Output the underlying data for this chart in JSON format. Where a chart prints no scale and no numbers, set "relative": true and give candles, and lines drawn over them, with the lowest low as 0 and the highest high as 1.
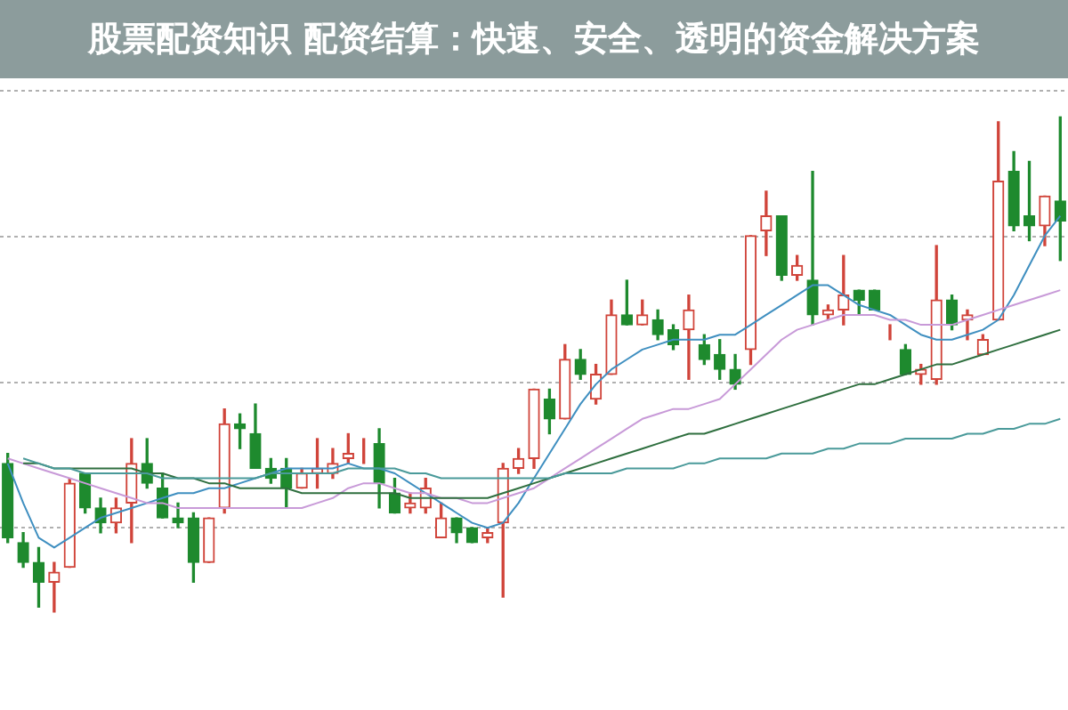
{
  "chart_data": {
    "type": "candlestick",
    "title": "股票配资知识 配资结算：快速、安全、透明的资金解决方案",
    "relative": true,
    "grid": "y",
    "marker": "none",
    "categories": [
      null,
      null,
      null,
      null,
      null,
      null,
      null,
      null,
      null,
      null,
      null,
      null,
      null,
      null,
      null,
      null,
      null,
      null,
      null,
      null,
      null,
      null,
      null,
      null,
      null,
      null,
      null,
      null,
      null,
      null,
      null,
      null,
      null,
      null,
      null,
      null,
      null,
      null,
      null,
      null,
      null,
      null,
      null,
      null,
      null,
      null,
      null,
      null,
      null,
      null,
      null,
      null,
      null,
      null,
      null,
      null,
      null,
      null,
      null,
      null,
      null,
      null,
      null,
      null,
      null,
      null,
      null,
      null,
      null
    ],
    "ohlc": [
      [
        0.3,
        0.32,
        0.14,
        0.15
      ],
      [
        0.14,
        0.16,
        0.09,
        0.1
      ],
      [
        0.1,
        0.13,
        0.01,
        0.06
      ],
      [
        0.06,
        0.1,
        0,
        0.08
      ],
      [
        0.09,
        0.27,
        0.09,
        0.26
      ],
      [
        0.28,
        0.28,
        0.2,
        0.21
      ],
      [
        0.21,
        0.23,
        0.16,
        0.18
      ],
      [
        0.18,
        0.23,
        0.16,
        0.21
      ],
      [
        0.22,
        0.35,
        0.14,
        0.3
      ],
      [
        0.3,
        0.35,
        0.25,
        0.26
      ],
      [
        0.25,
        0.28,
        0.19,
        0.19
      ],
      [
        0.19,
        0.22,
        0.17,
        0.18
      ],
      [
        0.19,
        0.2,
        0.06,
        0.1
      ],
      [
        0.1,
        0.19,
        0.1,
        0.19
      ],
      [
        0.21,
        0.41,
        0.2,
        0.38
      ],
      [
        0.38,
        0.4,
        0.33,
        0.37
      ],
      [
        0.36,
        0.42,
        0.29,
        0.29
      ],
      [
        0.29,
        0.31,
        0.26,
        0.27
      ],
      [
        0.29,
        0.31,
        0.21,
        0.25
      ],
      [
        0.25,
        0.29,
        0.25,
        0.28
      ],
      [
        0.28,
        0.35,
        0.25,
        0.29
      ],
      [
        0.28,
        0.33,
        0.27,
        0.3
      ],
      [
        0.31,
        0.36,
        0.3,
        0.32
      ],
      [
        0.32,
        0.35,
        0.3,
        0.32
      ],
      [
        0.34,
        0.37,
        0.21,
        0.26
      ],
      [
        0.24,
        0.27,
        0.2,
        0.2
      ],
      [
        0.21,
        0.24,
        0.2,
        0.22
      ],
      [
        0.21,
        0.27,
        0.2,
        0.25
      ],
      [
        0.15,
        0.22,
        0.15,
        0.19
      ],
      [
        0.19,
        0.19,
        0.14,
        0.16
      ],
      [
        0.17,
        0.17,
        0.14,
        0.14
      ],
      [
        0.15,
        0.17,
        0.14,
        0.16
      ],
      [
        0.18,
        0.3,
        0.03,
        0.29
      ],
      [
        0.29,
        0.33,
        0.28,
        0.31
      ],
      [
        0.31,
        0.45,
        0.29,
        0.45
      ],
      [
        0.43,
        0.45,
        0.36,
        0.39
      ],
      [
        0.39,
        0.54,
        0.39,
        0.51
      ],
      [
        0.51,
        0.53,
        0.47,
        0.48
      ],
      [
        0.43,
        0.5,
        0.42,
        0.48
      ],
      [
        0.48,
        0.63,
        0.48,
        0.6
      ],
      [
        0.6,
        0.67,
        0.58,
        0.58
      ],
      [
        0.58,
        0.63,
        0.58,
        0.6
      ],
      [
        0.59,
        0.61,
        0.55,
        0.56
      ],
      [
        0.57,
        0.58,
        0.53,
        0.54
      ],
      [
        0.57,
        0.64,
        0.47,
        0.61
      ],
      [
        0.54,
        0.56,
        0.5,
        0.51
      ],
      [
        0.52,
        0.55,
        0.47,
        0.49
      ],
      [
        0.49,
        0.52,
        0.45,
        0.46
      ],
      [
        0.53,
        0.76,
        0.5,
        0.76
      ],
      [
        0.77,
        0.85,
        0.72,
        0.8
      ],
      [
        0.8,
        0.8,
        0.67,
        0.68
      ],
      [
        0.68,
        0.72,
        0.67,
        0.7
      ],
      [
        0.67,
        0.89,
        0.58,
        0.6
      ],
      [
        0.6,
        0.62,
        0.59,
        0.61
      ],
      [
        0.61,
        0.72,
        0.58,
        0.64
      ],
      [
        0.65,
        0.65,
        0.6,
        0.63
      ],
      [
        0.65,
        0.65,
        0.61,
        0.61
      ],
      [
        0.56,
        0.58,
        0.55,
        0.56
      ],
      [
        0.53,
        0.54,
        0.48,
        0.48
      ],
      [
        0.48,
        0.5,
        0.46,
        0.49
      ],
      [
        0.47,
        0.74,
        0.46,
        0.63
      ],
      [
        0.63,
        0.64,
        0.57,
        0.58
      ],
      [
        0.59,
        0.61,
        0.55,
        0.6
      ],
      [
        0.52,
        0.56,
        0.52,
        0.55
      ],
      [
        0.59,
        0.99,
        0.59,
        0.87
      ],
      [
        0.89,
        0.93,
        0.77,
        0.78
      ],
      [
        0.8,
        0.91,
        0.75,
        0.78
      ],
      [
        0.78,
        0.84,
        0.74,
        0.84
      ],
      [
        0.83,
        1.0,
        0.71,
        0.79
      ]
    ],
    "series": [
      {
        "type": "line",
        "color": "#4a9a9a",
        "values": [
          null,
          0.31,
          0.3,
          0.29,
          0.29,
          0.28,
          0.28,
          0.28,
          0.28,
          0.28,
          0.27,
          0.27,
          0.27,
          0.27,
          0.27,
          0.27,
          0.27,
          0.28,
          0.28,
          0.28,
          0.28,
          0.28,
          0.29,
          0.29,
          0.29,
          0.29,
          0.28,
          0.28,
          0.27,
          0.27,
          0.27,
          0.27,
          0.27,
          0.27,
          0.27,
          0.27,
          0.28,
          0.28,
          0.28,
          0.28,
          0.29,
          0.29,
          0.29,
          0.29,
          0.3,
          0.3,
          0.31,
          0.31,
          0.31,
          0.31,
          0.32,
          0.32,
          0.32,
          0.33,
          0.33,
          0.34,
          0.34,
          0.34,
          0.35,
          0.35,
          0.35,
          0.35,
          0.36,
          0.36,
          0.37,
          0.37,
          0.38,
          0.38,
          0.39
        ]
      },
      {
        "type": "line",
        "color": "#2f6f3f",
        "values": [
          null,
          0.3,
          0.3,
          0.29,
          0.29,
          0.29,
          0.29,
          0.29,
          0.29,
          0.28,
          0.28,
          0.27,
          0.27,
          0.26,
          0.26,
          0.25,
          0.25,
          0.25,
          0.25,
          0.24,
          0.24,
          0.24,
          0.24,
          0.24,
          0.24,
          0.24,
          0.23,
          0.23,
          0.23,
          0.23,
          0.23,
          0.23,
          0.24,
          0.25,
          0.26,
          0.27,
          0.28,
          0.29,
          0.3,
          0.31,
          0.32,
          0.33,
          0.34,
          0.35,
          0.36,
          0.36,
          0.37,
          0.38,
          0.39,
          0.4,
          0.41,
          0.42,
          0.43,
          0.44,
          0.45,
          0.46,
          0.46,
          0.47,
          0.48,
          0.49,
          0.5,
          0.5,
          0.51,
          0.52,
          0.53,
          0.54,
          0.55,
          0.56,
          0.57
        ]
      },
      {
        "type": "line",
        "color": "#c89ad8",
        "values": [
          0.31,
          0.3,
          0.29,
          0.28,
          0.27,
          0.26,
          0.25,
          0.24,
          0.23,
          0.22,
          0.22,
          0.21,
          0.21,
          0.21,
          0.21,
          0.21,
          0.21,
          0.21,
          0.21,
          0.21,
          0.22,
          0.23,
          0.25,
          0.26,
          0.26,
          0.25,
          0.24,
          0.24,
          0.23,
          0.23,
          0.22,
          0.22,
          0.23,
          0.24,
          0.25,
          0.27,
          0.29,
          0.31,
          0.33,
          0.35,
          0.37,
          0.39,
          0.4,
          0.41,
          0.41,
          0.42,
          0.43,
          0.46,
          0.49,
          0.52,
          0.55,
          0.57,
          0.58,
          0.59,
          0.6,
          0.6,
          0.6,
          0.59,
          0.59,
          0.58,
          0.58,
          0.58,
          0.59,
          0.6,
          0.61,
          0.62,
          0.63,
          0.64,
          0.65
        ]
      },
      {
        "type": "line",
        "color": "#3f8fc0",
        "values": [
          0.3,
          0.22,
          0.15,
          0.13,
          0.15,
          0.17,
          0.19,
          0.2,
          0.21,
          0.22,
          0.23,
          0.24,
          0.24,
          0.25,
          0.25,
          0.26,
          0.27,
          0.28,
          0.29,
          0.29,
          0.29,
          0.29,
          0.3,
          0.29,
          0.29,
          0.28,
          0.26,
          0.24,
          0.22,
          0.2,
          0.18,
          0.17,
          0.18,
          0.22,
          0.27,
          0.32,
          0.37,
          0.42,
          0.46,
          0.49,
          0.51,
          0.53,
          0.54,
          0.55,
          0.55,
          0.55,
          0.56,
          0.56,
          0.58,
          0.6,
          0.62,
          0.64,
          0.66,
          0.66,
          0.64,
          0.62,
          0.61,
          0.6,
          0.58,
          0.56,
          0.55,
          0.55,
          0.56,
          0.57,
          0.59,
          0.64,
          0.7,
          0.76,
          0.8
        ]
      }
    ]
  }
}
